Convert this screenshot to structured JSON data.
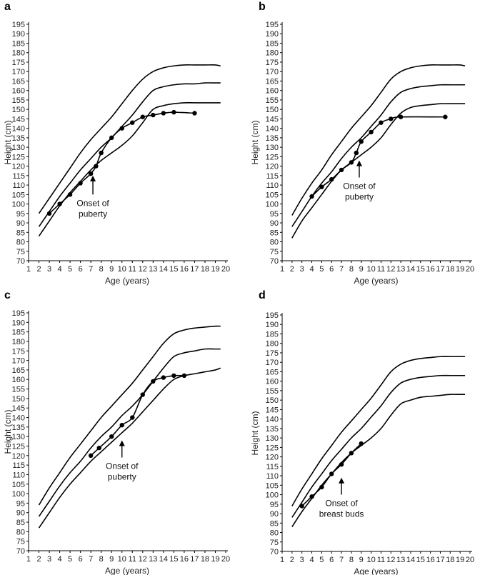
{
  "chart_data": [
    {
      "panel_label": "a",
      "type": "line",
      "xlabel": "Age (years)",
      "ylabel": "Height (cm)",
      "xlim": [
        1,
        20
      ],
      "ylim": [
        70,
        195
      ],
      "x_ticks": [
        1,
        2,
        3,
        4,
        5,
        6,
        7,
        8,
        9,
        10,
        11,
        12,
        13,
        14,
        15,
        16,
        17,
        18,
        19,
        20
      ],
      "y_ticks": [
        70,
        75,
        80,
        85,
        90,
        95,
        100,
        105,
        110,
        115,
        120,
        125,
        130,
        135,
        140,
        145,
        150,
        155,
        160,
        165,
        170,
        175,
        180,
        185,
        190,
        195
      ],
      "reference_curves": [
        {
          "name": "upper",
          "x": [
            2,
            3,
            4,
            5,
            6,
            7,
            8,
            9,
            10,
            11,
            12,
            13,
            14,
            15,
            16,
            17,
            18,
            19,
            19.5
          ],
          "y": [
            95,
            103,
            111,
            119,
            127,
            134,
            140,
            146,
            153,
            160,
            166,
            170,
            172,
            173,
            173.5,
            173.5,
            173.5,
            173.5,
            173
          ]
        },
        {
          "name": "middle",
          "x": [
            2,
            3,
            4,
            5,
            6,
            7,
            8,
            9,
            10,
            11,
            12,
            13,
            14,
            15,
            16,
            17,
            18,
            19,
            19.5
          ],
          "y": [
            88,
            96,
            104,
            111,
            118,
            124,
            130,
            135,
            141,
            147,
            154,
            160,
            162,
            163,
            163.5,
            163.5,
            164,
            164,
            164
          ]
        },
        {
          "name": "lower",
          "x": [
            2,
            3,
            4,
            5,
            6,
            7,
            8,
            9,
            10,
            11,
            12,
            13,
            14,
            15,
            16,
            17,
            18,
            19,
            19.5
          ],
          "y": [
            83,
            91,
            99,
            106,
            112,
            118,
            123,
            127,
            131,
            136,
            143,
            150,
            152,
            153,
            153.5,
            153.5,
            153.5,
            153.5,
            153.5
          ]
        }
      ],
      "series": [
        {
          "name": "patient",
          "x": [
            3,
            4,
            5,
            6,
            7,
            7.5,
            8,
            9,
            10,
            11,
            12,
            13,
            14,
            15,
            17
          ],
          "y": [
            95,
            100,
            105,
            111,
            116,
            120,
            127,
            135,
            140,
            143,
            146,
            147,
            148,
            148.5,
            148
          ]
        }
      ],
      "annotations": [
        {
          "text_lines": [
            "Onset of",
            "puberty"
          ],
          "arrow_x": 7.2,
          "arrow_y_from": 105,
          "arrow_y_to": 115
        }
      ]
    },
    {
      "panel_label": "b",
      "type": "line",
      "xlabel": "Age (years)",
      "ylabel": "Height (cm)",
      "xlim": [
        1,
        20
      ],
      "ylim": [
        70,
        195
      ],
      "x_ticks": [
        1,
        2,
        3,
        4,
        5,
        6,
        7,
        8,
        9,
        10,
        11,
        12,
        13,
        14,
        15,
        16,
        17,
        18,
        19,
        20
      ],
      "y_ticks": [
        70,
        75,
        80,
        85,
        90,
        95,
        100,
        105,
        110,
        115,
        120,
        125,
        130,
        135,
        140,
        145,
        150,
        155,
        160,
        165,
        170,
        175,
        180,
        185,
        190,
        195
      ],
      "reference_curves": [
        {
          "name": "upper",
          "x": [
            2,
            3,
            4,
            5,
            6,
            7,
            8,
            9,
            10,
            11,
            12,
            13,
            14,
            15,
            16,
            17,
            18,
            19,
            19.5
          ],
          "y": [
            94,
            103,
            111,
            118,
            126,
            133,
            140,
            146,
            152,
            159,
            166,
            170,
            172,
            173,
            173.5,
            173.5,
            173.5,
            173.5,
            173
          ]
        },
        {
          "name": "middle",
          "x": [
            2,
            3,
            4,
            5,
            6,
            7,
            8,
            9,
            10,
            11,
            12,
            13,
            14,
            15,
            16,
            17,
            18,
            19,
            19.5
          ],
          "y": [
            88,
            96,
            104,
            111,
            117,
            124,
            130,
            135,
            141,
            147,
            154,
            159,
            161,
            162,
            162.5,
            163,
            163,
            163,
            163
          ]
        },
        {
          "name": "lower",
          "x": [
            2,
            3,
            4,
            5,
            6,
            7,
            8,
            9,
            10,
            11,
            12,
            13,
            14,
            15,
            16,
            17,
            18,
            19,
            19.5
          ],
          "y": [
            82,
            91,
            98,
            105,
            112,
            118,
            122,
            126,
            130,
            135,
            142,
            148,
            151,
            152,
            152.5,
            153,
            153,
            153,
            153
          ]
        }
      ],
      "series": [
        {
          "name": "patient",
          "x": [
            4,
            5,
            6,
            7,
            8,
            8.5,
            9,
            10,
            11,
            12,
            13,
            17.5
          ],
          "y": [
            104,
            109,
            113,
            118,
            122,
            127,
            133,
            138,
            143,
            145,
            146,
            146
          ]
        }
      ],
      "annotations": [
        {
          "text_lines": [
            "Onset of",
            "puberty"
          ],
          "arrow_x": 8.8,
          "arrow_y_from": 114,
          "arrow_y_to": 123
        }
      ]
    },
    {
      "panel_label": "c",
      "type": "line",
      "xlabel": "Age (years)",
      "ylabel": "Height (cm)",
      "xlim": [
        1,
        20
      ],
      "ylim": [
        70,
        195
      ],
      "x_ticks": [
        1,
        2,
        3,
        4,
        5,
        6,
        7,
        8,
        9,
        10,
        11,
        12,
        13,
        14,
        15,
        16,
        17,
        18,
        19,
        20
      ],
      "y_ticks": [
        70,
        75,
        80,
        85,
        90,
        95,
        100,
        105,
        110,
        115,
        120,
        125,
        130,
        135,
        140,
        145,
        150,
        155,
        160,
        165,
        170,
        175,
        180,
        185,
        190,
        195
      ],
      "reference_curves": [
        {
          "name": "upper",
          "x": [
            2,
            3,
            4,
            5,
            6,
            7,
            8,
            9,
            10,
            11,
            12,
            13,
            14,
            15,
            16,
            17,
            18,
            19,
            19.5
          ],
          "y": [
            94,
            103,
            111,
            119,
            126,
            133,
            140,
            146,
            152,
            158,
            165,
            172,
            179,
            184,
            186,
            187,
            187.5,
            188,
            188
          ]
        },
        {
          "name": "middle",
          "x": [
            2,
            3,
            4,
            5,
            6,
            7,
            8,
            9,
            10,
            11,
            12,
            13,
            14,
            15,
            16,
            17,
            18,
            19,
            19.5
          ],
          "y": [
            88,
            96,
            104,
            111,
            117,
            124,
            130,
            135,
            141,
            146,
            152,
            159,
            166,
            172,
            174,
            175,
            176,
            176,
            176
          ]
        },
        {
          "name": "lower",
          "x": [
            2,
            3,
            4,
            5,
            6,
            7,
            8,
            9,
            10,
            11,
            12,
            13,
            14,
            15,
            16,
            17,
            18,
            19,
            19.5
          ],
          "y": [
            82,
            90,
            98,
            105,
            111,
            117,
            122,
            127,
            132,
            137,
            143,
            149,
            155,
            160,
            162,
            163,
            164,
            165,
            166
          ]
        }
      ],
      "series": [
        {
          "name": "patient",
          "x": [
            7,
            7.8,
            9,
            10,
            11,
            12,
            13,
            14,
            15,
            16
          ],
          "y": [
            120,
            124,
            130,
            136,
            140,
            152,
            159,
            161,
            162,
            162
          ]
        }
      ],
      "annotations": [
        {
          "text_lines": [
            "Onset of",
            "puberty"
          ],
          "arrow_x": 10,
          "arrow_y_from": 119,
          "arrow_y_to": 128
        }
      ]
    },
    {
      "panel_label": "d",
      "type": "line",
      "xlabel": "Age (years)",
      "ylabel": "Height (cm)",
      "xlim": [
        1,
        20
      ],
      "ylim": [
        70,
        195
      ],
      "x_ticks": [
        1,
        2,
        3,
        4,
        5,
        6,
        7,
        8,
        9,
        10,
        11,
        12,
        13,
        14,
        15,
        16,
        17,
        18,
        19,
        20
      ],
      "y_ticks": [
        70,
        75,
        80,
        85,
        90,
        95,
        100,
        105,
        110,
        115,
        120,
        125,
        130,
        135,
        140,
        145,
        150,
        155,
        160,
        165,
        170,
        175,
        180,
        185,
        190,
        195
      ],
      "reference_curves": [
        {
          "name": "upper",
          "x": [
            2,
            3,
            4,
            5,
            6,
            7,
            8,
            9,
            10,
            11,
            12,
            13,
            14,
            15,
            16,
            17,
            18,
            19,
            19.5
          ],
          "y": [
            94,
            103,
            111,
            119,
            126,
            133,
            139,
            145,
            151,
            158,
            165,
            169,
            171,
            172,
            172.5,
            173,
            173,
            173,
            173
          ]
        },
        {
          "name": "middle",
          "x": [
            2,
            3,
            4,
            5,
            6,
            7,
            8,
            9,
            10,
            11,
            12,
            13,
            14,
            15,
            16,
            17,
            18,
            19,
            19.5
          ],
          "y": [
            88,
            96,
            104,
            111,
            118,
            124,
            130,
            135,
            141,
            147,
            154,
            159,
            161,
            162,
            162.5,
            163,
            163,
            163,
            163
          ]
        },
        {
          "name": "lower",
          "x": [
            2,
            3,
            4,
            5,
            6,
            7,
            8,
            9,
            10,
            11,
            12,
            13,
            14,
            15,
            16,
            17,
            18,
            19,
            19.5
          ],
          "y": [
            83,
            91,
            98,
            105,
            111,
            117,
            122,
            126,
            130,
            135,
            142,
            148,
            150,
            151.5,
            152,
            152.5,
            153,
            153,
            153
          ]
        }
      ],
      "series": [
        {
          "name": "patient",
          "x": [
            3,
            4,
            5,
            6,
            7,
            8,
            9
          ],
          "y": [
            94,
            99,
            104,
            111,
            116,
            122,
            127
          ]
        }
      ],
      "annotations": [
        {
          "text_lines": [
            "Onset of",
            "breast buds"
          ],
          "arrow_x": 7,
          "arrow_y_from": 100,
          "arrow_y_to": 109
        }
      ]
    }
  ]
}
